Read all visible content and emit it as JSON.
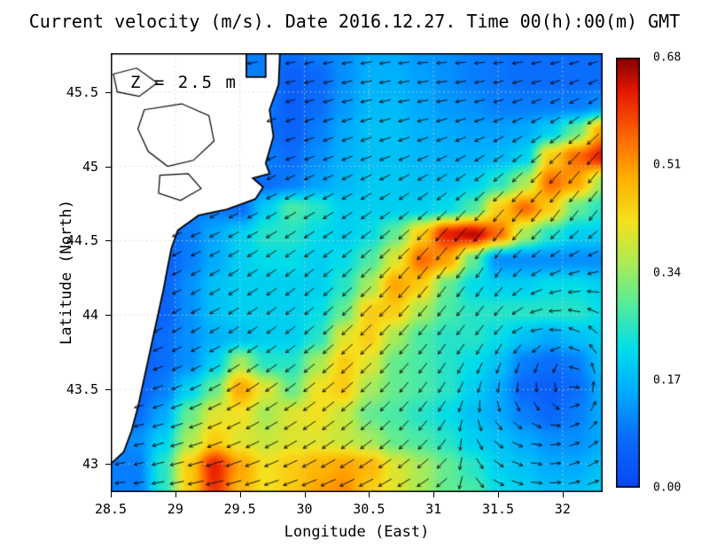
{
  "chart_data": {
    "type": "heatmap",
    "overlay": "vector_arrows",
    "title": "Current velocity (m/s). Date 2016.12.27. Time 00(h):00(m) GMT",
    "depth_annotation": "Z = 2.5 m",
    "xlabel": "Longitude (East)",
    "ylabel": "Latitude (North)",
    "units": "m/s",
    "lon_range": [
      28.5,
      32.31
    ],
    "lat_range": [
      42.81,
      45.76
    ],
    "x_ticks": [
      {
        "v": 28.5,
        "t": "28.5"
      },
      {
        "v": 29,
        "t": "29"
      },
      {
        "v": 29.5,
        "t": "29.5"
      },
      {
        "v": 30,
        "t": "30"
      },
      {
        "v": 30.5,
        "t": "30.5"
      },
      {
        "v": 31,
        "t": "31"
      },
      {
        "v": 31.5,
        "t": "31.5"
      },
      {
        "v": 32,
        "t": "32"
      }
    ],
    "y_ticks": [
      {
        "v": 43,
        "t": "43"
      },
      {
        "v": 43.5,
        "t": "43.5"
      },
      {
        "v": 44,
        "t": "44"
      },
      {
        "v": 44.5,
        "t": "44.5"
      },
      {
        "v": 45,
        "t": "45"
      },
      {
        "v": 45.5,
        "t": "45.5"
      }
    ],
    "colorbar": {
      "min": 0.0,
      "max": 0.68,
      "ticks": [
        {
          "v": 0.0,
          "t": "0.00"
        },
        {
          "v": 0.17,
          "t": "0.17"
        },
        {
          "v": 0.34,
          "t": "0.34"
        },
        {
          "v": 0.51,
          "t": "0.51"
        },
        {
          "v": 0.68,
          "t": "0.68"
        }
      ]
    },
    "colormap_stops": [
      [
        0.0,
        10,
        70,
        245
      ],
      [
        0.12,
        10,
        110,
        252
      ],
      [
        0.22,
        0,
        170,
        255
      ],
      [
        0.32,
        0,
        220,
        235
      ],
      [
        0.42,
        80,
        235,
        160
      ],
      [
        0.52,
        170,
        235,
        85
      ],
      [
        0.62,
        245,
        225,
        30
      ],
      [
        0.72,
        255,
        175,
        0
      ],
      [
        0.82,
        255,
        100,
        0
      ],
      [
        0.92,
        230,
        25,
        0
      ],
      [
        1.0,
        135,
        0,
        0
      ]
    ],
    "magnitude_grid": {
      "lon_count": 20,
      "lat_count": 18,
      "order": "north_to_south",
      "values": [
        [
          0.1,
          0.1,
          0.1,
          0.1,
          0.1,
          0.1,
          0.1,
          0.08,
          0.1,
          0.12,
          0.15,
          0.15,
          0.13,
          0.12,
          0.1,
          0.09,
          0.08,
          0.08,
          0.08,
          0.08
        ],
        [
          0.1,
          0.1,
          0.1,
          0.1,
          0.1,
          0.1,
          0.1,
          0.05,
          0.07,
          0.12,
          0.16,
          0.16,
          0.14,
          0.12,
          0.1,
          0.09,
          0.08,
          0.08,
          0.08,
          0.08
        ],
        [
          0.1,
          0.1,
          0.1,
          0.1,
          0.1,
          0.1,
          0.1,
          0.05,
          0.08,
          0.13,
          0.17,
          0.17,
          0.15,
          0.13,
          0.12,
          0.1,
          0.1,
          0.1,
          0.1,
          0.12
        ],
        [
          0.1,
          0.1,
          0.1,
          0.1,
          0.1,
          0.1,
          0.08,
          0.06,
          0.1,
          0.15,
          0.18,
          0.18,
          0.16,
          0.15,
          0.14,
          0.14,
          0.15,
          0.2,
          0.3,
          0.5
        ],
        [
          0.1,
          0.1,
          0.1,
          0.1,
          0.1,
          0.1,
          0.1,
          0.08,
          0.12,
          0.16,
          0.18,
          0.18,
          0.17,
          0.16,
          0.16,
          0.17,
          0.2,
          0.45,
          0.55,
          0.62
        ],
        [
          0.1,
          0.1,
          0.1,
          0.1,
          0.1,
          0.08,
          0.08,
          0.1,
          0.14,
          0.17,
          0.19,
          0.19,
          0.18,
          0.18,
          0.2,
          0.25,
          0.35,
          0.55,
          0.5,
          0.35
        ],
        [
          0.1,
          0.1,
          0.1,
          0.1,
          0.1,
          0.08,
          0.2,
          0.28,
          0.25,
          0.2,
          0.2,
          0.2,
          0.2,
          0.22,
          0.28,
          0.45,
          0.55,
          0.45,
          0.3,
          0.25
        ],
        [
          0.08,
          0.06,
          0.06,
          0.1,
          0.15,
          0.2,
          0.25,
          0.25,
          0.22,
          0.2,
          0.22,
          0.3,
          0.45,
          0.62,
          0.65,
          0.55,
          0.35,
          0.25,
          0.2,
          0.2
        ],
        [
          0.08,
          0.05,
          0.05,
          0.1,
          0.15,
          0.2,
          0.22,
          0.22,
          0.2,
          0.22,
          0.28,
          0.4,
          0.55,
          0.5,
          0.3,
          0.12,
          0.12,
          0.12,
          0.12,
          0.12
        ],
        [
          0.08,
          0.05,
          0.06,
          0.12,
          0.18,
          0.2,
          0.2,
          0.2,
          0.2,
          0.25,
          0.35,
          0.5,
          0.45,
          0.3,
          0.22,
          0.2,
          0.2,
          0.22,
          0.22,
          0.2
        ],
        [
          0.08,
          0.05,
          0.06,
          0.12,
          0.18,
          0.2,
          0.2,
          0.2,
          0.22,
          0.3,
          0.45,
          0.45,
          0.35,
          0.28,
          0.25,
          0.25,
          0.25,
          0.25,
          0.25,
          0.22
        ],
        [
          0.06,
          0.05,
          0.08,
          0.12,
          0.16,
          0.18,
          0.2,
          0.2,
          0.25,
          0.4,
          0.45,
          0.35,
          0.28,
          0.25,
          0.25,
          0.22,
          0.18,
          0.15,
          0.18,
          0.2
        ],
        [
          0.06,
          0.05,
          0.08,
          0.12,
          0.2,
          0.35,
          0.25,
          0.25,
          0.35,
          0.45,
          0.4,
          0.3,
          0.28,
          0.25,
          0.22,
          0.18,
          0.1,
          0.08,
          0.1,
          0.18
        ],
        [
          0.06,
          0.06,
          0.1,
          0.2,
          0.3,
          0.5,
          0.4,
          0.3,
          0.42,
          0.45,
          0.35,
          0.3,
          0.28,
          0.25,
          0.2,
          0.15,
          0.07,
          0.05,
          0.08,
          0.15
        ],
        [
          0.08,
          0.08,
          0.15,
          0.3,
          0.4,
          0.42,
          0.35,
          0.4,
          0.42,
          0.38,
          0.3,
          0.28,
          0.25,
          0.22,
          0.18,
          0.15,
          0.1,
          0.07,
          0.1,
          0.15
        ],
        [
          0.1,
          0.12,
          0.2,
          0.35,
          0.45,
          0.4,
          0.38,
          0.4,
          0.4,
          0.38,
          0.35,
          0.3,
          0.28,
          0.25,
          0.2,
          0.18,
          0.15,
          0.12,
          0.12,
          0.15
        ],
        [
          0.1,
          0.1,
          0.25,
          0.45,
          0.62,
          0.5,
          0.42,
          0.45,
          0.48,
          0.5,
          0.48,
          0.4,
          0.35,
          0.3,
          0.25,
          0.2,
          0.18,
          0.15,
          0.15,
          0.18
        ],
        [
          0.1,
          0.1,
          0.25,
          0.45,
          0.6,
          0.48,
          0.42,
          0.45,
          0.5,
          0.52,
          0.45,
          0.4,
          0.35,
          0.3,
          0.28,
          0.22,
          0.2,
          0.18,
          0.18,
          0.2
        ]
      ]
    },
    "direction_grid": {
      "lon_count": 10,
      "lat_count": 9,
      "order": "north_to_south",
      "convention": "degrees_ccw_from_east",
      "values": [
        [
          185,
          185,
          188,
          190,
          190,
          188,
          185,
          185,
          190,
          195
        ],
        [
          190,
          192,
          195,
          196,
          196,
          192,
          190,
          196,
          205,
          215
        ],
        [
          195,
          196,
          200,
          202,
          202,
          202,
          206,
          215,
          225,
          230
        ],
        [
          200,
          202,
          206,
          210,
          212,
          216,
          224,
          230,
          232,
          232
        ],
        [
          202,
          206,
          210,
          215,
          220,
          226,
          232,
          236,
          205,
          190
        ],
        [
          198,
          206,
          210,
          216,
          222,
          226,
          232,
          230,
          180,
          135
        ],
        [
          195,
          202,
          210,
          216,
          220,
          226,
          236,
          255,
          270,
          90
        ],
        [
          192,
          196,
          202,
          210,
          216,
          222,
          232,
          315,
          0,
          45
        ],
        [
          186,
          189,
          192,
          197,
          202,
          207,
          213,
          330,
          0,
          20
        ]
      ]
    },
    "arrow_density": {
      "nx": 26,
      "ny": 23
    },
    "coastline": [
      [
        28.5,
        45.76
      ],
      [
        29.55,
        45.76
      ],
      [
        29.55,
        45.6
      ],
      [
        29.7,
        45.6
      ],
      [
        29.7,
        45.76
      ],
      [
        29.81,
        45.76
      ],
      [
        29.8,
        45.55
      ],
      [
        29.73,
        45.38
      ],
      [
        29.76,
        45.2
      ],
      [
        29.7,
        45.02
      ],
      [
        29.73,
        44.95
      ],
      [
        29.6,
        44.92
      ],
      [
        29.68,
        44.86
      ],
      [
        29.62,
        44.78
      ],
      [
        29.4,
        44.71
      ],
      [
        29.18,
        44.67
      ],
      [
        29.02,
        44.57
      ],
      [
        28.97,
        44.45
      ],
      [
        28.94,
        44.32
      ],
      [
        28.91,
        44.18
      ],
      [
        28.87,
        44.02
      ],
      [
        28.83,
        43.86
      ],
      [
        28.79,
        43.7
      ],
      [
        28.75,
        43.54
      ],
      [
        28.71,
        43.38
      ],
      [
        28.66,
        43.22
      ],
      [
        28.6,
        43.08
      ],
      [
        28.5,
        43.0
      ]
    ],
    "lagoon_outlines": [
      [
        [
          28.52,
          45.62
        ],
        [
          28.7,
          45.66
        ],
        [
          28.86,
          45.56
        ],
        [
          28.72,
          45.47
        ],
        [
          28.55,
          45.5
        ]
      ],
      [
        [
          28.76,
          45.38
        ],
        [
          29.05,
          45.42
        ],
        [
          29.26,
          45.34
        ],
        [
          29.3,
          45.17
        ],
        [
          29.14,
          45.04
        ],
        [
          28.94,
          45.0
        ],
        [
          28.79,
          45.1
        ],
        [
          28.71,
          45.25
        ]
      ],
      [
        [
          28.88,
          44.94
        ],
        [
          29.1,
          44.95
        ],
        [
          29.2,
          44.85
        ],
        [
          29.04,
          44.77
        ],
        [
          28.87,
          44.82
        ]
      ]
    ]
  }
}
